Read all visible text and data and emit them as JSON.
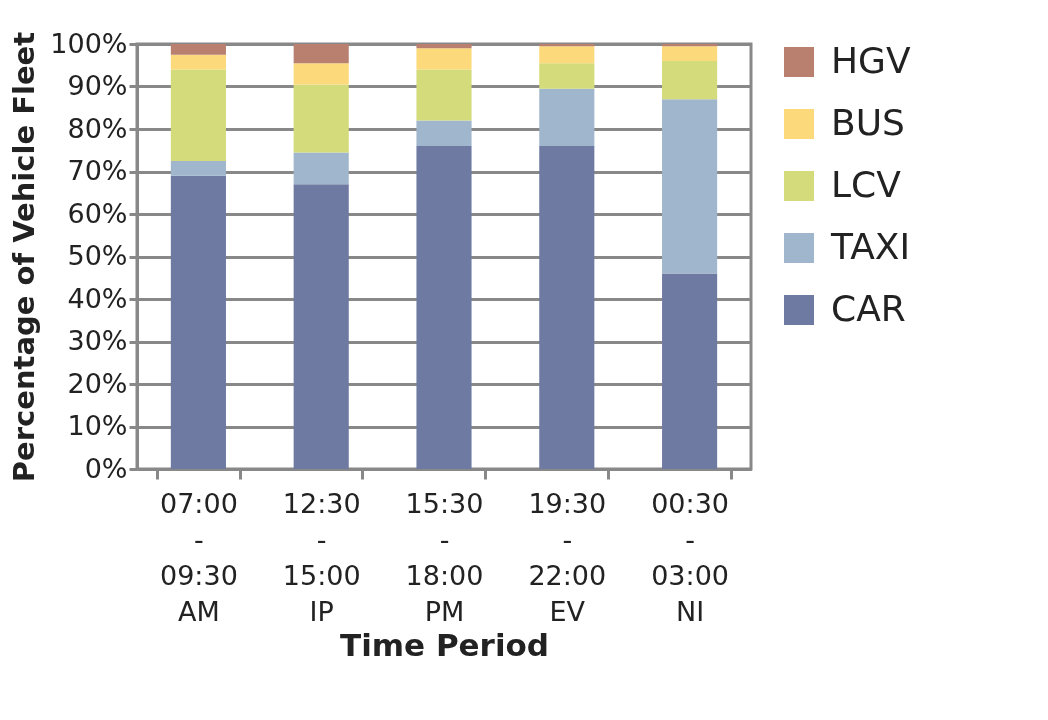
{
  "chart_data": {
    "type": "bar",
    "stacked": true,
    "xlabel": "Time Period",
    "ylabel": "Percentage of Vehicle Fleet",
    "categories": [
      "07:00\n-\n09:30\nAM",
      "12:30\n-\n15:00\nIP",
      "15:30\n-\n18:00\nPM",
      "19:30\n-\n22:00\nEV",
      "00:30\n-\n03:00\nNI"
    ],
    "series": [
      {
        "name": "CAR",
        "color": "#6f7aa3",
        "values": [
          69,
          67,
          76,
          76,
          46
        ]
      },
      {
        "name": "TAXI",
        "color": "#9fb6cc",
        "values": [
          3.5,
          7.5,
          6,
          13.5,
          41
        ]
      },
      {
        "name": "LCV",
        "color": "#d3db7a",
        "values": [
          21.5,
          16,
          12,
          6,
          9
        ]
      },
      {
        "name": "BUS",
        "color": "#fcd97a",
        "values": [
          3.5,
          5,
          5,
          4,
          3.5
        ]
      },
      {
        "name": "HGV",
        "color": "#b98070",
        "values": [
          2.5,
          4.5,
          1,
          0.5,
          0.5
        ]
      }
    ],
    "ylim": [
      0,
      100
    ],
    "yticks": [
      {
        "value": 0,
        "label": "0%"
      },
      {
        "value": 10,
        "label": "10%"
      },
      {
        "value": 20,
        "label": "20%"
      },
      {
        "value": 30,
        "label": "30%"
      },
      {
        "value": 40,
        "label": "40%"
      },
      {
        "value": 50,
        "label": "50%"
      },
      {
        "value": 60,
        "label": "60%"
      },
      {
        "value": 70,
        "label": "70%"
      },
      {
        "value": 80,
        "label": "80%"
      },
      {
        "value": 90,
        "label": "90%"
      },
      {
        "value": 100,
        "label": "100%"
      }
    ],
    "grid": "y",
    "legend": "right"
  }
}
